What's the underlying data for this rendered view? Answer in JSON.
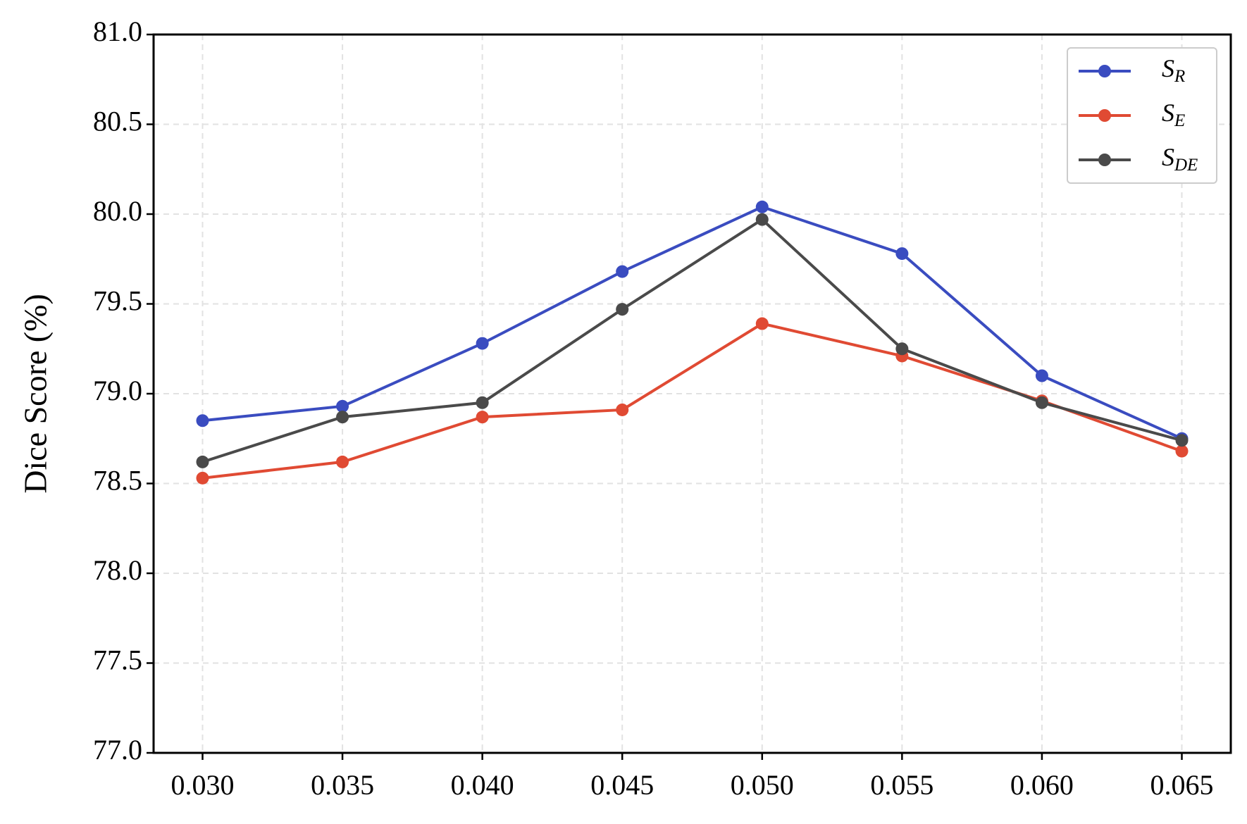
{
  "chart_data": {
    "type": "line",
    "y_label": "Dice Score (%)",
    "x": [
      0.03,
      0.035,
      0.04,
      0.045,
      0.05,
      0.055,
      0.06,
      0.065
    ],
    "series": [
      {
        "name": "SR",
        "color": "#3a4cc0",
        "values": [
          78.85,
          78.93,
          79.28,
          79.68,
          80.04,
          79.78,
          79.1,
          78.75
        ]
      },
      {
        "name": "SE",
        "color": "#e04a33",
        "values": [
          78.53,
          78.62,
          78.87,
          78.91,
          79.39,
          79.21,
          78.96,
          78.68
        ]
      },
      {
        "name": "SDE",
        "color": "#4a4a4a",
        "values": [
          78.62,
          78.87,
          78.95,
          79.47,
          79.97,
          79.25,
          78.95,
          78.74
        ]
      }
    ],
    "xlim": [
      0.02825,
      0.06675
    ],
    "xticks": [
      {
        "value": 0.03,
        "label": "0.030"
      },
      {
        "value": 0.035,
        "label": "0.035"
      },
      {
        "value": 0.04,
        "label": "0.040"
      },
      {
        "value": 0.045,
        "label": "0.045"
      },
      {
        "value": 0.05,
        "label": "0.050"
      },
      {
        "value": 0.055,
        "label": "0.055"
      },
      {
        "value": 0.06,
        "label": "0.060"
      },
      {
        "value": 0.065,
        "label": "0.065"
      }
    ],
    "ylim": [
      77,
      81
    ],
    "yticks": [
      {
        "value": 77,
        "label": "77.0"
      },
      {
        "value": 77.5,
        "label": "77.5"
      },
      {
        "value": 78,
        "label": "78.0"
      },
      {
        "value": 78.5,
        "label": "78.5"
      },
      {
        "value": 79,
        "label": "79.0"
      },
      {
        "value": 79.5,
        "label": "79.5"
      },
      {
        "value": 80,
        "label": "80.0"
      },
      {
        "value": 80.5,
        "label": "80.5"
      },
      {
        "value": 81,
        "label": "81.0"
      }
    ],
    "grid": true,
    "legend": "upper right"
  }
}
